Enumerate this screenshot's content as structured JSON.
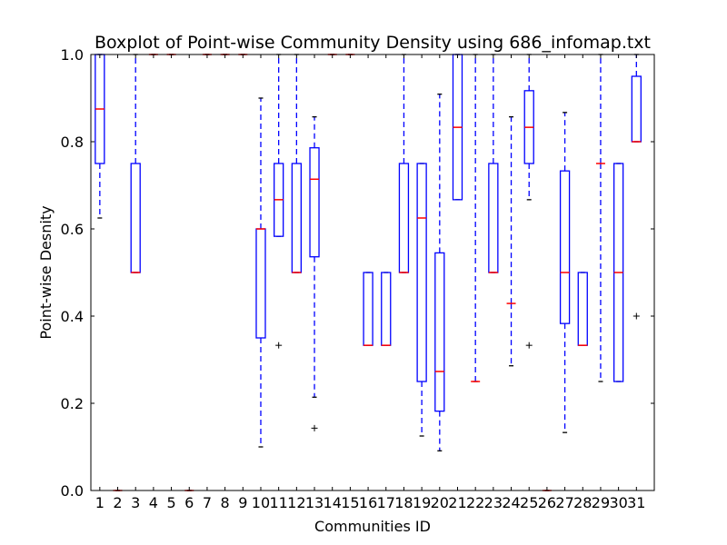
{
  "chart_data": {
    "type": "boxplot",
    "title": "Boxplot of Point-wise Community Density using 686_infomap.txt",
    "xlabel": "Communities ID",
    "ylabel": "Point-wise Desnity",
    "ylim": [
      0.0,
      1.0
    ],
    "yticks": [
      "0.0",
      "0.2",
      "0.4",
      "0.6",
      "0.8",
      "1.0"
    ],
    "categories": [
      "1",
      "2",
      "3",
      "4",
      "5",
      "6",
      "7",
      "8",
      "9",
      "10",
      "11",
      "12",
      "13",
      "14",
      "15",
      "16",
      "17",
      "18",
      "19",
      "20",
      "21",
      "22",
      "23",
      "24",
      "25",
      "26",
      "27",
      "28",
      "29",
      "30",
      "31"
    ],
    "grid": false,
    "colors": {
      "box": "#0000ff",
      "median": "#ff0000",
      "flier": "#000000"
    },
    "boxes": [
      {
        "id": "1",
        "q1": 0.75,
        "median": 0.875,
        "q3": 1.0,
        "whisker_low": 0.625,
        "whisker_high": 1.0,
        "fliers": []
      },
      {
        "id": "2",
        "q1": 0.0,
        "median": 0.0,
        "q3": 0.0,
        "whisker_low": 0.0,
        "whisker_high": 0.0,
        "fliers": []
      },
      {
        "id": "3",
        "q1": 0.5,
        "median": 0.5,
        "q3": 0.75,
        "whisker_low": 0.5,
        "whisker_high": 1.0,
        "fliers": []
      },
      {
        "id": "4",
        "q1": 1.0,
        "median": 1.0,
        "q3": 1.0,
        "whisker_low": 1.0,
        "whisker_high": 1.0,
        "fliers": []
      },
      {
        "id": "5",
        "q1": 1.0,
        "median": 1.0,
        "q3": 1.0,
        "whisker_low": 1.0,
        "whisker_high": 1.0,
        "fliers": []
      },
      {
        "id": "6",
        "q1": 0.0,
        "median": 0.0,
        "q3": 0.0,
        "whisker_low": 0.0,
        "whisker_high": 0.0,
        "fliers": []
      },
      {
        "id": "7",
        "q1": 1.0,
        "median": 1.0,
        "q3": 1.0,
        "whisker_low": 1.0,
        "whisker_high": 1.0,
        "fliers": []
      },
      {
        "id": "8",
        "q1": 1.0,
        "median": 1.0,
        "q3": 1.0,
        "whisker_low": 1.0,
        "whisker_high": 1.0,
        "fliers": []
      },
      {
        "id": "9",
        "q1": 1.0,
        "median": 1.0,
        "q3": 1.0,
        "whisker_low": 1.0,
        "whisker_high": 1.0,
        "fliers": []
      },
      {
        "id": "10",
        "q1": 0.35,
        "median": 0.6,
        "q3": 0.6,
        "whisker_low": 0.1,
        "whisker_high": 0.9,
        "fliers": []
      },
      {
        "id": "11",
        "q1": 0.583,
        "median": 0.667,
        "q3": 0.75,
        "whisker_low": 0.583,
        "whisker_high": 1.0,
        "fliers": [
          0.333
        ]
      },
      {
        "id": "12",
        "q1": 0.5,
        "median": 0.5,
        "q3": 0.75,
        "whisker_low": 0.5,
        "whisker_high": 1.0,
        "fliers": []
      },
      {
        "id": "13",
        "q1": 0.536,
        "median": 0.714,
        "q3": 0.786,
        "whisker_low": 0.214,
        "whisker_high": 0.857,
        "fliers": [
          0.143
        ]
      },
      {
        "id": "14",
        "q1": 1.0,
        "median": 1.0,
        "q3": 1.0,
        "whisker_low": 1.0,
        "whisker_high": 1.0,
        "fliers": []
      },
      {
        "id": "15",
        "q1": 1.0,
        "median": 1.0,
        "q3": 1.0,
        "whisker_low": 1.0,
        "whisker_high": 1.0,
        "fliers": []
      },
      {
        "id": "16",
        "q1": 0.333,
        "median": 0.333,
        "q3": 0.5,
        "whisker_low": 0.333,
        "whisker_high": 0.5,
        "fliers": []
      },
      {
        "id": "17",
        "q1": 0.333,
        "median": 0.333,
        "q3": 0.5,
        "whisker_low": 0.333,
        "whisker_high": 0.5,
        "fliers": []
      },
      {
        "id": "18",
        "q1": 0.5,
        "median": 0.5,
        "q3": 0.75,
        "whisker_low": 0.5,
        "whisker_high": 1.0,
        "fliers": []
      },
      {
        "id": "19",
        "q1": 0.25,
        "median": 0.625,
        "q3": 0.75,
        "whisker_low": 0.125,
        "whisker_high": 0.75,
        "fliers": []
      },
      {
        "id": "20",
        "q1": 0.182,
        "median": 0.273,
        "q3": 0.545,
        "whisker_low": 0.091,
        "whisker_high": 0.909,
        "fliers": []
      },
      {
        "id": "21",
        "q1": 0.667,
        "median": 0.833,
        "q3": 1.0,
        "whisker_low": 0.667,
        "whisker_high": 1.0,
        "fliers": []
      },
      {
        "id": "22",
        "q1": 0.25,
        "median": 0.25,
        "q3": 0.25,
        "whisker_low": 0.25,
        "whisker_high": 1.0,
        "fliers": []
      },
      {
        "id": "23",
        "q1": 0.5,
        "median": 0.5,
        "q3": 0.75,
        "whisker_low": 0.5,
        "whisker_high": 1.0,
        "fliers": []
      },
      {
        "id": "24",
        "q1": 0.429,
        "median": 0.429,
        "q3": 0.429,
        "whisker_low": 0.286,
        "whisker_high": 0.857,
        "fliers": []
      },
      {
        "id": "25",
        "q1": 0.75,
        "median": 0.833,
        "q3": 0.917,
        "whisker_low": 0.667,
        "whisker_high": 1.0,
        "fliers": [
          0.333
        ]
      },
      {
        "id": "26",
        "q1": 0.0,
        "median": 0.0,
        "q3": 0.0,
        "whisker_low": 0.0,
        "whisker_high": 0.0,
        "fliers": []
      },
      {
        "id": "27",
        "q1": 0.383,
        "median": 0.5,
        "q3": 0.733,
        "whisker_low": 0.133,
        "whisker_high": 0.867,
        "fliers": []
      },
      {
        "id": "28",
        "q1": 0.333,
        "median": 0.333,
        "q3": 0.5,
        "whisker_low": 0.333,
        "whisker_high": 0.5,
        "fliers": []
      },
      {
        "id": "29",
        "q1": 0.75,
        "median": 0.75,
        "q3": 0.75,
        "whisker_low": 0.25,
        "whisker_high": 1.0,
        "fliers": []
      },
      {
        "id": "30",
        "q1": 0.25,
        "median": 0.5,
        "q3": 0.75,
        "whisker_low": 0.25,
        "whisker_high": 0.75,
        "fliers": []
      },
      {
        "id": "31",
        "q1": 0.8,
        "median": 0.8,
        "q3": 0.95,
        "whisker_low": 0.8,
        "whisker_high": 1.0,
        "fliers": [
          0.4
        ]
      }
    ]
  }
}
